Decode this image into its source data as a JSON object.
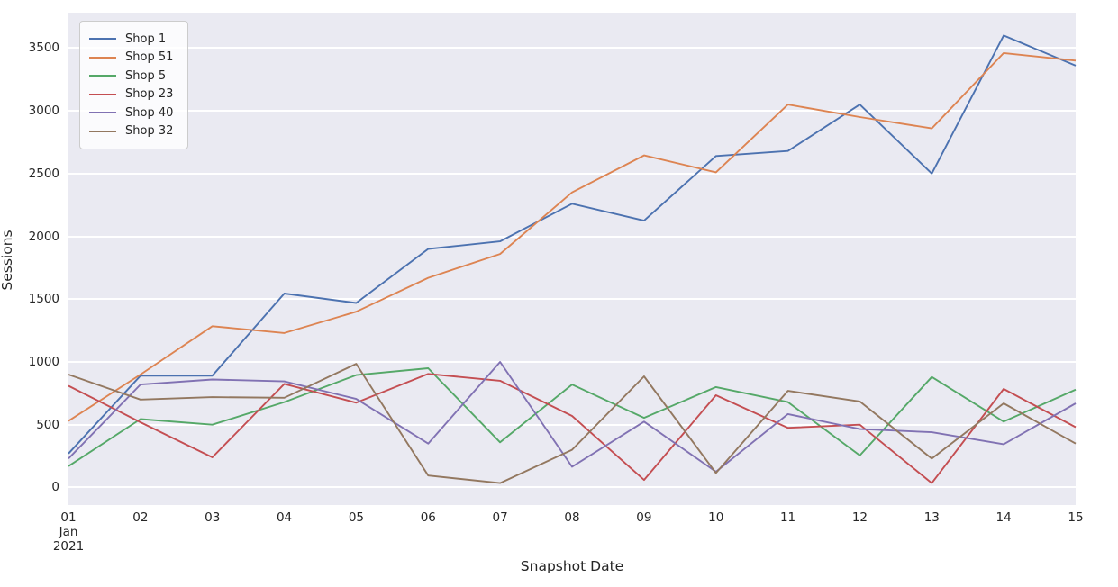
{
  "chart_data": {
    "type": "line",
    "title": "",
    "xlabel": "Snapshot Date",
    "ylabel": "Sessions",
    "x_tick_labels": [
      [
        "01",
        "Jan",
        "2021"
      ],
      [
        "02"
      ],
      [
        "03"
      ],
      [
        "04"
      ],
      [
        "05"
      ],
      [
        "06"
      ],
      [
        "07"
      ],
      [
        "08"
      ],
      [
        "09"
      ],
      [
        "10"
      ],
      [
        "11"
      ],
      [
        "12"
      ],
      [
        "13"
      ],
      [
        "14"
      ],
      [
        "15"
      ]
    ],
    "y_ticks": [
      0,
      500,
      1000,
      1500,
      2000,
      2500,
      3000,
      3500
    ],
    "ylim": [
      -140,
      3782
    ],
    "grid": "horizontal",
    "legend_position": "upper-left",
    "series": [
      {
        "name": "Shop 1",
        "color": "#4c72b0",
        "values": [
          270,
          890,
          890,
          1545,
          1470,
          1900,
          1960,
          2260,
          2125,
          2640,
          2680,
          3050,
          2500,
          3600,
          3360
        ]
      },
      {
        "name": "Shop 51",
        "color": "#dd8452",
        "values": [
          530,
          900,
          1285,
          1230,
          1400,
          1670,
          1860,
          2350,
          2645,
          2510,
          3050,
          2950,
          2860,
          3460,
          3400
        ]
      },
      {
        "name": "Shop 5",
        "color": "#55a868",
        "values": [
          170,
          545,
          500,
          680,
          895,
          950,
          360,
          820,
          555,
          800,
          680,
          255,
          880,
          525,
          780
        ]
      },
      {
        "name": "Shop 23",
        "color": "#c44e52",
        "values": [
          810,
          520,
          240,
          825,
          675,
          905,
          850,
          570,
          60,
          735,
          475,
          500,
          35,
          785,
          480
        ]
      },
      {
        "name": "Shop 40",
        "color": "#8172b3",
        "values": [
          230,
          820,
          860,
          845,
          705,
          350,
          1000,
          165,
          525,
          125,
          585,
          465,
          440,
          345,
          670
        ]
      },
      {
        "name": "Shop 32",
        "color": "#937860",
        "values": [
          900,
          700,
          720,
          715,
          985,
          95,
          35,
          300,
          885,
          115,
          770,
          685,
          230,
          670,
          350
        ]
      }
    ]
  },
  "colors": {
    "figure_bg": "#ffffff",
    "plot_bg": "#eaeaf2",
    "grid": "#ffffff",
    "text": "#262626",
    "legend_border": "#cccccc"
  }
}
